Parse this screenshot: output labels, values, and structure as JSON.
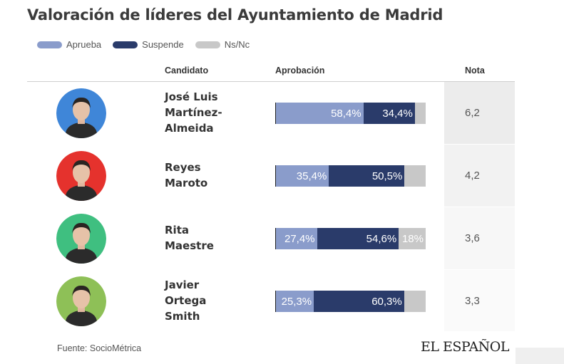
{
  "title": "Valoración de líderes del Ayuntamiento de Madrid",
  "legend": [
    {
      "label": "Aprueba",
      "color": "#8a9ccb"
    },
    {
      "label": "Suspende",
      "color": "#2a3b6a"
    },
    {
      "label": "Ns/Nc",
      "color": "#c8c8c8"
    }
  ],
  "headers": {
    "candidate": "Candidato",
    "approval": "Aprobación",
    "grade": "Nota"
  },
  "chart_data": {
    "type": "bar",
    "stacked": true,
    "orientation": "horizontal",
    "categories": [
      "José Luis Martínez-Almeida",
      "Reyes Maroto",
      "Rita Maestre",
      "Javier Ortega Smith"
    ],
    "series": [
      {
        "name": "Aprueba",
        "values": [
          58.4,
          35.4,
          27.4,
          25.3
        ],
        "labels": [
          "58,4%",
          "35,4%",
          "27,4%",
          "25,3%"
        ]
      },
      {
        "name": "Suspende",
        "values": [
          34.4,
          50.5,
          54.6,
          60.3
        ],
        "labels": [
          "34,4%",
          "50,5%",
          "54,6%",
          "60,3%"
        ]
      },
      {
        "name": "Ns/Nc",
        "values": [
          7.2,
          14.1,
          18.0,
          14.4
        ],
        "labels": [
          "",
          "",
          "18%",
          ""
        ]
      }
    ],
    "notas": [
      "6,2",
      "4,2",
      "3,6",
      "3,3"
    ],
    "xlim": [
      0,
      100
    ]
  },
  "rows": [
    {
      "name_lines": [
        "José Luis",
        "Martínez-",
        "Almeida"
      ],
      "avatar_color": "#3f86d8"
    },
    {
      "name_lines": [
        "Reyes",
        "Maroto"
      ],
      "avatar_color": "#e5322d"
    },
    {
      "name_lines": [
        "Rita",
        "Maestre"
      ],
      "avatar_color": "#3fbf80"
    },
    {
      "name_lines": [
        "Javier",
        "Ortega",
        "Smith"
      ],
      "avatar_color": "#8ec057"
    }
  ],
  "source": "Fuente: SocioMétrica",
  "logo": "EL ESPAÑOL"
}
